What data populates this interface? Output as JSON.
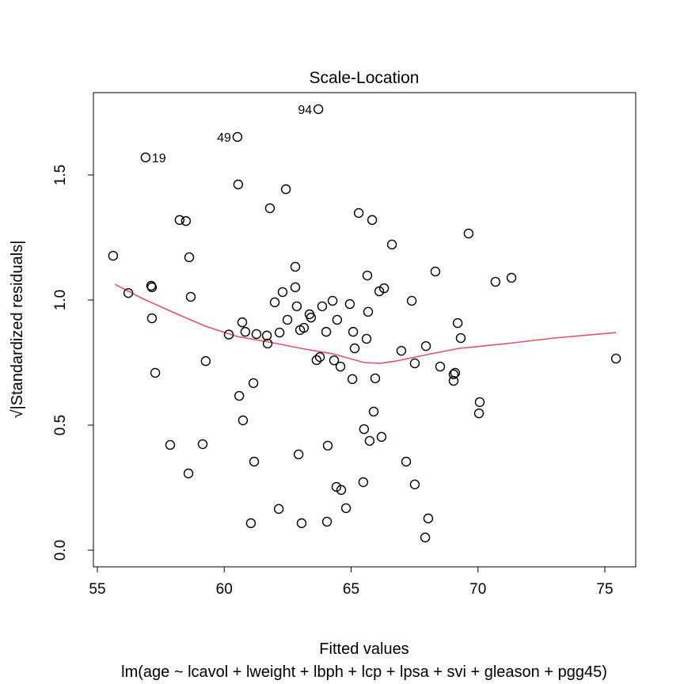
{
  "chart_data": {
    "type": "scatter",
    "title": "Scale-Location",
    "xlabel": "Fitted values",
    "ylabel": "√|Standardized residuals|",
    "subtitle": "lm(age ~ lcavol + lweight + lbph + lcp + lpsa + svi + gleason + pgg45)",
    "xlim": [
      54.85,
      76.1
    ],
    "ylim": [
      -0.07,
      1.83
    ],
    "xticks": [
      55,
      60,
      65,
      70,
      75
    ],
    "yticks": [
      0.0,
      0.5,
      1.0,
      1.5
    ],
    "ytick_labels": [
      "0.0",
      "0.5",
      "1.0",
      "1.5"
    ],
    "grid": false,
    "colors": {
      "points": "#000000",
      "smooth": "#DF536B"
    },
    "points": [
      [
        55.62,
        1.177
      ],
      [
        56.22,
        1.028
      ],
      [
        56.9,
        1.57
      ],
      [
        57.12,
        1.057
      ],
      [
        57.15,
        1.051
      ],
      [
        57.15,
        0.927
      ],
      [
        57.28,
        0.709
      ],
      [
        57.87,
        0.421
      ],
      [
        58.24,
        1.32
      ],
      [
        58.49,
        1.316
      ],
      [
        58.62,
        1.171
      ],
      [
        58.68,
        1.013
      ],
      [
        58.59,
        0.307
      ],
      [
        59.15,
        0.424
      ],
      [
        59.27,
        0.756
      ],
      [
        60.18,
        0.862
      ],
      [
        60.52,
        1.652
      ],
      [
        60.55,
        1.462
      ],
      [
        60.59,
        0.617
      ],
      [
        60.71,
        0.911
      ],
      [
        60.74,
        0.519
      ],
      [
        60.83,
        0.873
      ],
      [
        61.15,
        0.668
      ],
      [
        61.18,
        0.354
      ],
      [
        61.27,
        0.864
      ],
      [
        61.05,
        0.108
      ],
      [
        61.68,
        0.858
      ],
      [
        61.71,
        0.826
      ],
      [
        61.8,
        1.367
      ],
      [
        61.99,
        0.991
      ],
      [
        62.15,
        0.165
      ],
      [
        62.18,
        0.87
      ],
      [
        62.3,
        1.032
      ],
      [
        62.43,
        1.443
      ],
      [
        62.49,
        0.921
      ],
      [
        62.8,
        1.133
      ],
      [
        62.8,
        1.051
      ],
      [
        62.86,
        0.975
      ],
      [
        62.93,
        0.383
      ],
      [
        62.99,
        0.88
      ],
      [
        63.05,
        0.108
      ],
      [
        63.14,
        0.889
      ],
      [
        63.36,
        0.943
      ],
      [
        63.42,
        0.93
      ],
      [
        63.64,
        0.76
      ],
      [
        63.77,
        0.772
      ],
      [
        63.71,
        1.763
      ],
      [
        63.86,
        0.975
      ],
      [
        64.02,
        0.873
      ],
      [
        64.08,
        0.418
      ],
      [
        64.05,
        0.114
      ],
      [
        64.27,
        0.997
      ],
      [
        64.33,
        0.759
      ],
      [
        64.42,
        0.253
      ],
      [
        64.45,
        0.921
      ],
      [
        64.58,
        0.734
      ],
      [
        64.61,
        0.241
      ],
      [
        64.8,
        0.168
      ],
      [
        64.95,
        0.984
      ],
      [
        65.05,
        0.684
      ],
      [
        65.08,
        0.873
      ],
      [
        65.14,
        0.807
      ],
      [
        65.3,
        1.348
      ],
      [
        65.48,
        0.272
      ],
      [
        65.51,
        0.484
      ],
      [
        65.61,
        0.845
      ],
      [
        65.64,
        1.098
      ],
      [
        65.67,
        0.953
      ],
      [
        65.73,
        0.437
      ],
      [
        65.89,
        0.554
      ],
      [
        65.95,
        0.687
      ],
      [
        66.2,
        0.453
      ],
      [
        65.83,
        1.32
      ],
      [
        66.11,
        1.035
      ],
      [
        66.3,
        1.047
      ],
      [
        66.61,
        1.222
      ],
      [
        66.98,
        0.797
      ],
      [
        67.17,
        0.354
      ],
      [
        67.39,
        0.997
      ],
      [
        67.51,
        0.263
      ],
      [
        67.51,
        0.747
      ],
      [
        67.92,
        0.051
      ],
      [
        67.95,
        0.816
      ],
      [
        68.04,
        0.127
      ],
      [
        68.32,
        1.114
      ],
      [
        68.51,
        0.734
      ],
      [
        69.04,
        0.677
      ],
      [
        69.04,
        0.703
      ],
      [
        69.1,
        0.709
      ],
      [
        69.2,
        0.908
      ],
      [
        69.32,
        0.848
      ],
      [
        69.63,
        1.266
      ],
      [
        70.07,
        0.592
      ],
      [
        70.04,
        0.547
      ],
      [
        70.69,
        1.073
      ],
      [
        71.32,
        1.089
      ],
      [
        75.44,
        0.766
      ]
    ],
    "point_labels": [
      {
        "text": "19",
        "x": 56.9,
        "y": 1.57,
        "side": "right"
      },
      {
        "text": "49",
        "x": 60.52,
        "y": 1.652,
        "side": "left"
      },
      {
        "text": "94",
        "x": 63.71,
        "y": 1.763,
        "side": "left"
      }
    ],
    "smooth_line": [
      [
        55.69,
        1.063
      ],
      [
        56.78,
        1.006
      ],
      [
        58.03,
        0.949
      ],
      [
        59.27,
        0.895
      ],
      [
        60.52,
        0.854
      ],
      [
        61.77,
        0.832
      ],
      [
        63.02,
        0.807
      ],
      [
        64.27,
        0.785
      ],
      [
        65.52,
        0.75
      ],
      [
        66.14,
        0.747
      ],
      [
        66.76,
        0.756
      ],
      [
        68.01,
        0.782
      ],
      [
        69.26,
        0.807
      ],
      [
        69.89,
        0.813
      ],
      [
        71.13,
        0.826
      ],
      [
        73.0,
        0.848
      ],
      [
        75.44,
        0.87
      ]
    ]
  }
}
